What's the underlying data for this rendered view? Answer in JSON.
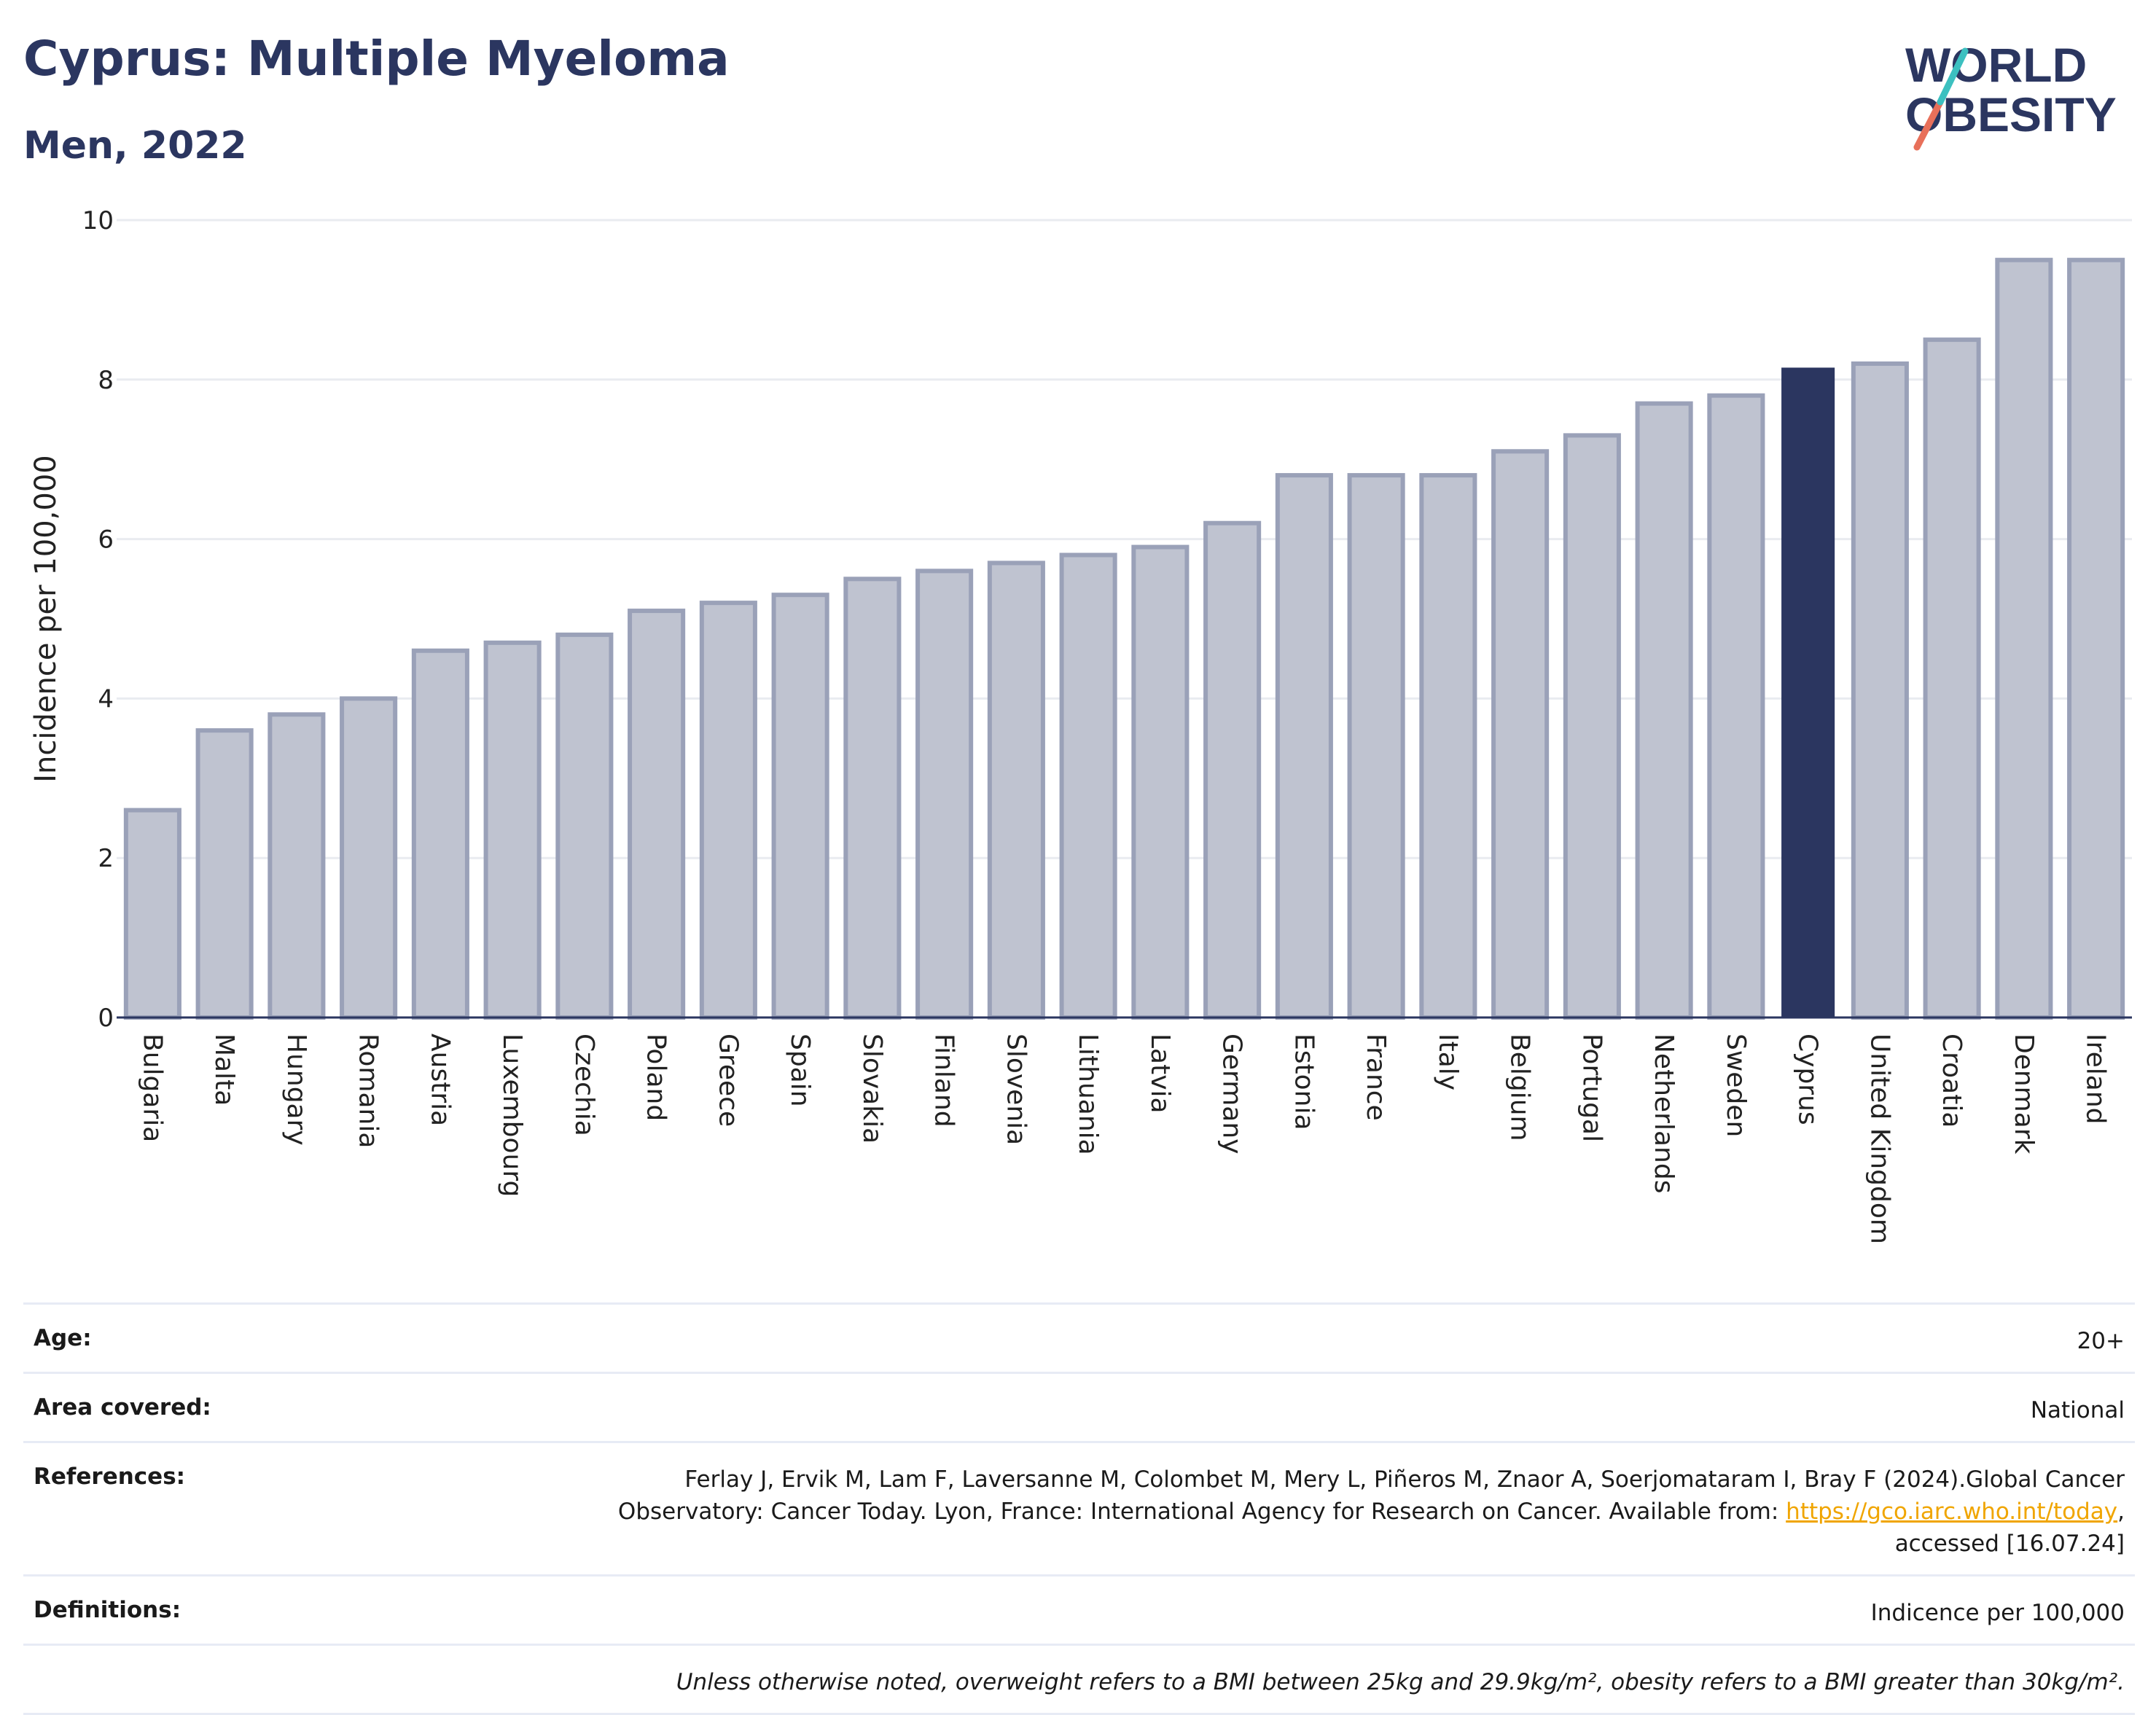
{
  "header": {
    "title": "Cyprus: Multiple Myeloma",
    "subtitle": "Men, 2022",
    "logo_line1": "WORLD",
    "logo_line2": "OBESITY"
  },
  "chart_data": {
    "type": "bar",
    "ylabel": "Incidence per 100,000",
    "ylim": [
      0,
      10
    ],
    "yticks": [
      0,
      2,
      4,
      6,
      8,
      10
    ],
    "grid": true,
    "highlight": "Cyprus",
    "colors": {
      "bar": "#bfc3d0",
      "bar_edge": "#9aa1b8",
      "highlight": "#2b3660",
      "grid": "#e9ebf0",
      "axis": "#2b3660"
    },
    "categories": [
      "Bulgaria",
      "Malta",
      "Hungary",
      "Romania",
      "Austria",
      "Luxembourg",
      "Czechia",
      "Poland",
      "Greece",
      "Spain",
      "Slovakia",
      "Finland",
      "Slovenia",
      "Lithuania",
      "Latvia",
      "Germany",
      "Estonia",
      "France",
      "Italy",
      "Belgium",
      "Portugal",
      "Netherlands",
      "Sweden",
      "Cyprus",
      "United Kingdom",
      "Croatia",
      "Denmark",
      "Ireland"
    ],
    "values": [
      2.6,
      3.6,
      3.8,
      4.0,
      4.6,
      4.7,
      4.8,
      5.1,
      5.2,
      5.3,
      5.5,
      5.6,
      5.7,
      5.8,
      5.9,
      6.2,
      6.8,
      6.8,
      6.8,
      7.1,
      7.3,
      7.7,
      7.8,
      8.15,
      8.2,
      8.5,
      9.5,
      9.5
    ]
  },
  "info": {
    "age_label": "Age:",
    "age_value": "20+",
    "area_label": "Area covered:",
    "area_value": "National",
    "references_label": "References:",
    "references_text": "Ferlay J, Ervik M, Lam F, Laversanne M, Colombet M, Mery L, Piñeros M, Znaor A, Soerjomataram I, Bray F (2024).Global Cancer Observatory: Cancer Today. Lyon, France: International Agency for Research on Cancer. Available from: ",
    "references_link": "https://gco.iarc.who.int/today",
    "references_suffix": ", accessed [16.07.24]",
    "definitions_label": "Definitions:",
    "definitions_value": "Indicence per 100,000",
    "note": "Unless otherwise noted, overweight refers to a BMI between 25kg and 29.9kg/m², obesity refers to a BMI greater than 30kg/m²."
  }
}
